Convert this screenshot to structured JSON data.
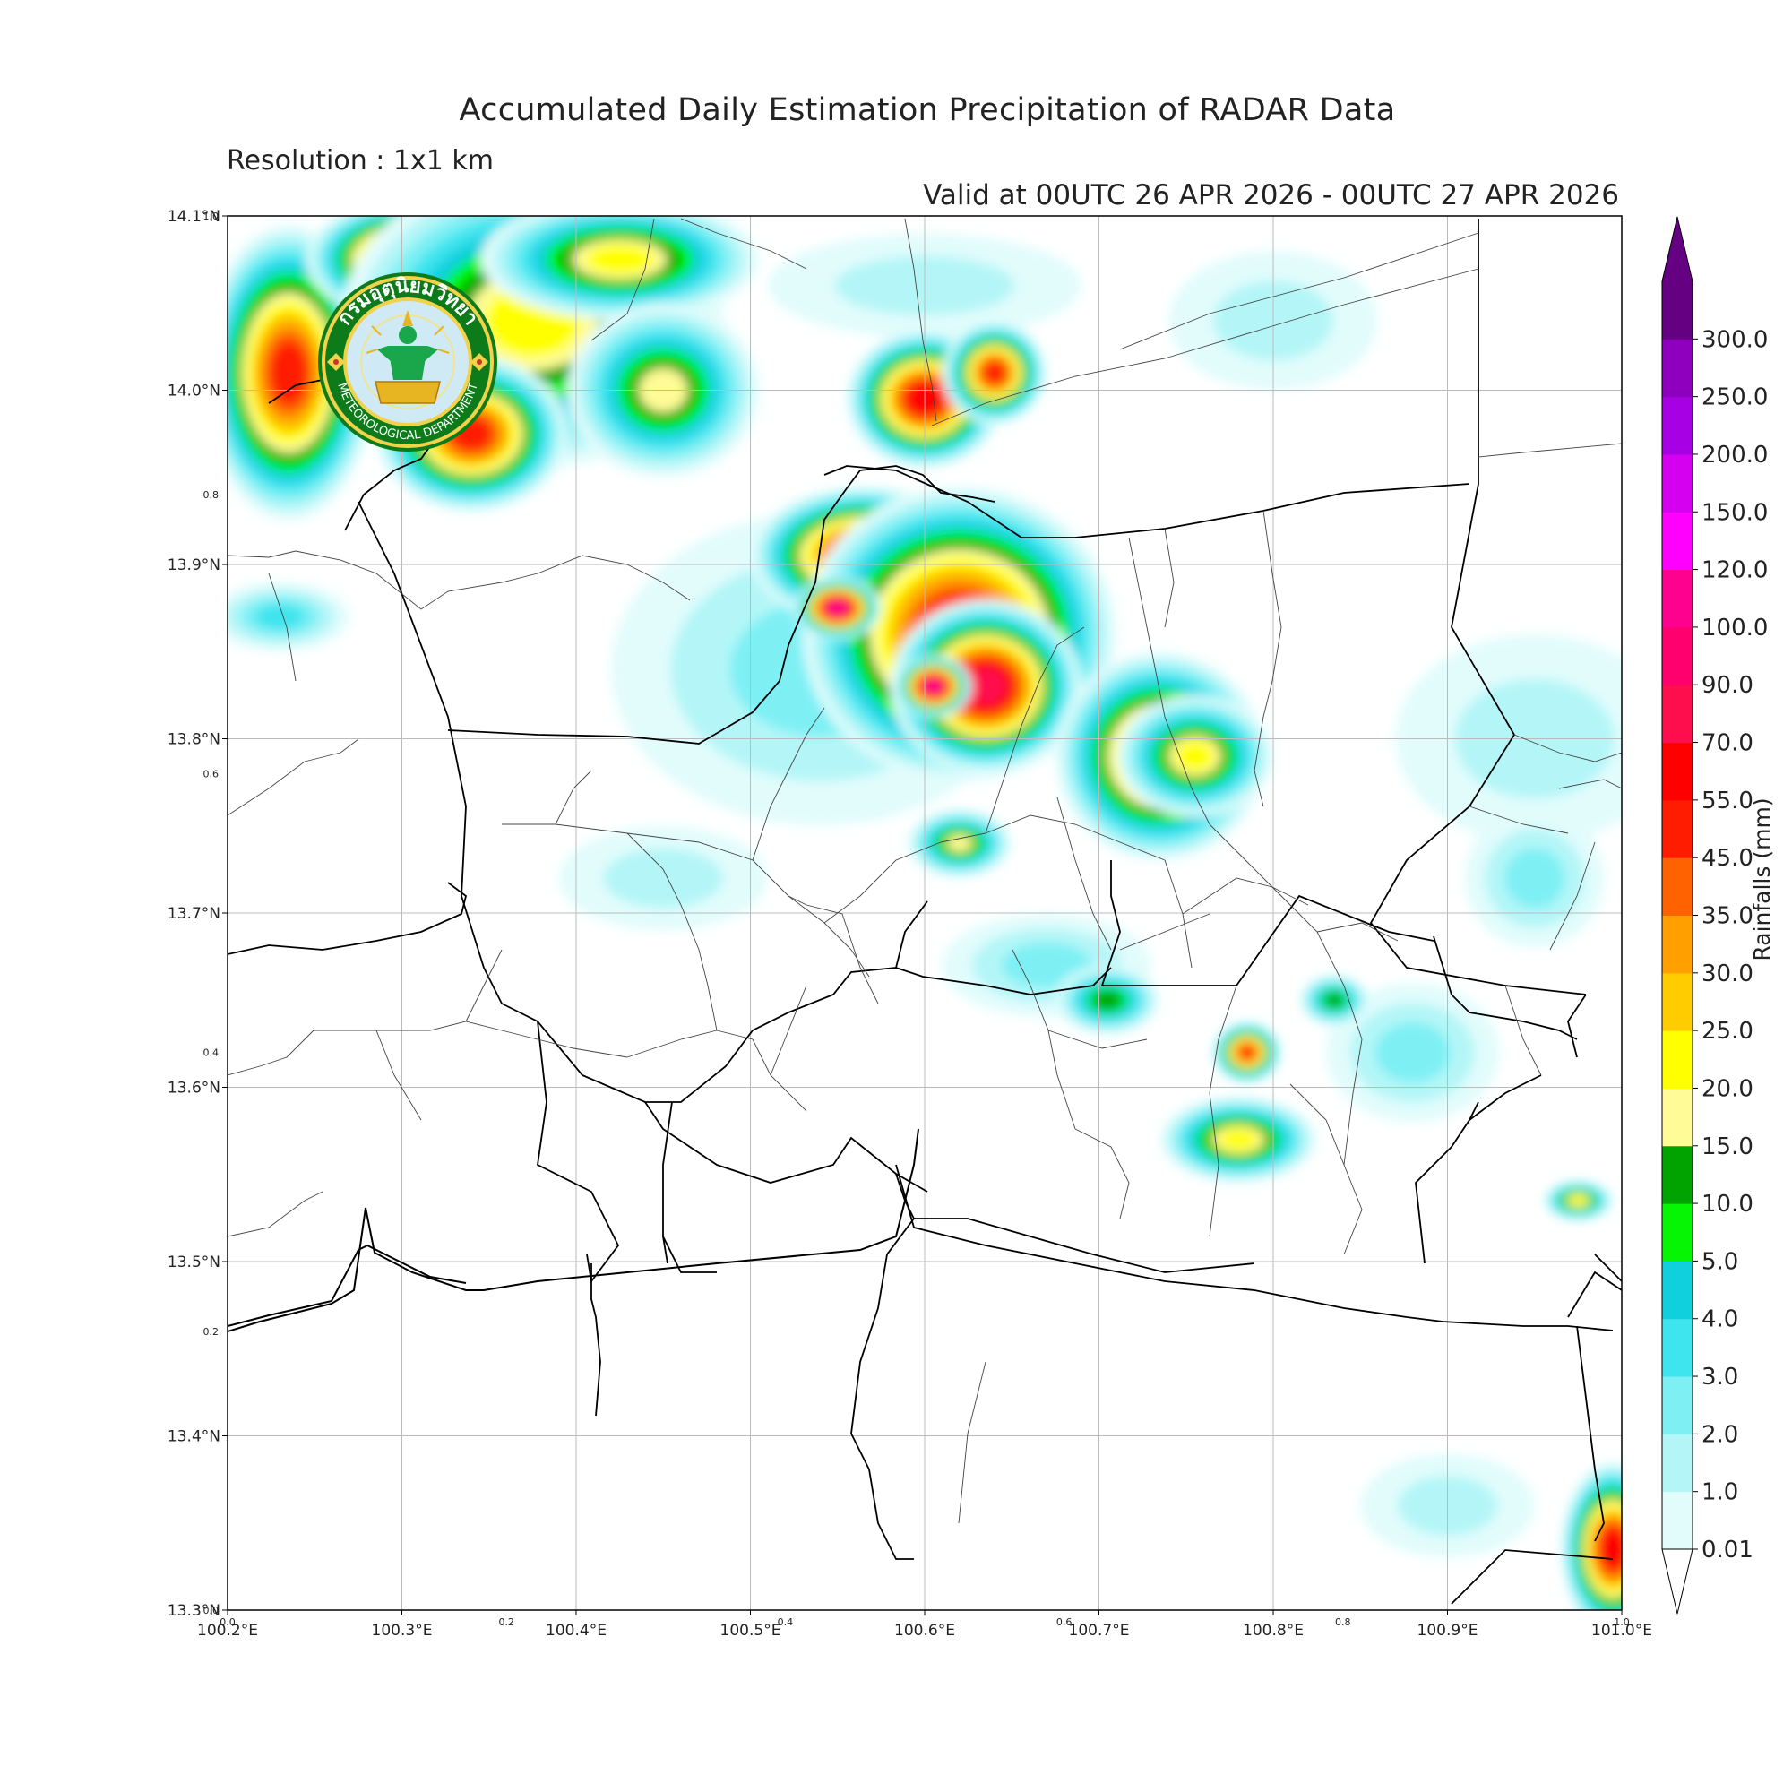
{
  "title": "Accumulated Daily Estimation Precipitation of RADAR Data",
  "subtitle": "Resolution : 1x1 km",
  "valid": "Valid at 00UTC 26 APR 2026 - 00UTC 27 APR 2026",
  "logo": {
    "name": "Thai Meteorological Department seal",
    "text_thai": "กรมอุตุนิยมวิทยา",
    "text_en": "METEOROLOGICAL DEPARTMENT"
  },
  "lon_ticks": [
    "100.2°E",
    "100.3°E",
    "100.4°E",
    "100.5°E",
    "100.6°E",
    "100.7°E",
    "100.8°E",
    "100.9°E",
    "101.0°E"
  ],
  "lat_ticks": [
    "14.1°N",
    "14.0°N",
    "13.9°N",
    "13.8°N",
    "13.7°N",
    "13.6°N",
    "13.5°N",
    "13.4°N",
    "13.3°N"
  ],
  "minor_ticks_x": [
    "0.0",
    "0.2",
    "0.4",
    "0.6",
    "0.8",
    "1.0"
  ],
  "minor_ticks_y": [
    "1.0",
    "0.8",
    "0.6",
    "0.4",
    "0.2",
    "0.0"
  ],
  "colorbar": {
    "title": "Rainfalls (mm)",
    "levels": [
      "0.01",
      "1.0",
      "2.0",
      "3.0",
      "4.0",
      "5.0",
      "10.0",
      "15.0",
      "20.0",
      "25.0",
      "30.0",
      "35.0",
      "45.0",
      "55.0",
      "70.0",
      "90.0",
      "100.0",
      "120.0",
      "150.0",
      "200.0",
      "250.0",
      "300.0"
    ],
    "colors": [
      "#e2fcfc",
      "#b4f6f8",
      "#7ef0f4",
      "#3ee4ee",
      "#10d0de",
      "#05f505",
      "#00a300",
      "#fffb96",
      "#ffff00",
      "#ffcc00",
      "#ff9f00",
      "#ff6200",
      "#ff1c00",
      "#ff0000",
      "#ff0e4e",
      "#ff006e",
      "#ff008f",
      "#ff00ff",
      "#d500ef",
      "#a800e4",
      "#8e00be",
      "#640081"
    ]
  },
  "rain_cells": [
    {
      "lon": 100.235,
      "lat": 14.01,
      "rx": 0.05,
      "ry": 0.085,
      "value": 45.0
    },
    {
      "lon": 100.305,
      "lat": 14.075,
      "rx": 0.06,
      "ry": 0.035,
      "value": 55.0
    },
    {
      "lon": 100.375,
      "lat": 14.04,
      "rx": 0.11,
      "ry": 0.085,
      "value": 20.0
    },
    {
      "lon": 100.34,
      "lat": 13.975,
      "rx": 0.055,
      "ry": 0.045,
      "value": 45.0
    },
    {
      "lon": 100.425,
      "lat": 14.075,
      "rx": 0.08,
      "ry": 0.035,
      "value": 20.0
    },
    {
      "lon": 100.45,
      "lat": 14.0,
      "rx": 0.055,
      "ry": 0.05,
      "value": 15.0
    },
    {
      "lon": 100.6,
      "lat": 13.995,
      "rx": 0.045,
      "ry": 0.04,
      "value": 55.0
    },
    {
      "lon": 100.64,
      "lat": 14.01,
      "rx": 0.03,
      "ry": 0.03,
      "value": 45.0
    },
    {
      "lon": 100.565,
      "lat": 13.905,
      "rx": 0.065,
      "ry": 0.04,
      "value": 55.0
    },
    {
      "lon": 100.62,
      "lat": 13.86,
      "rx": 0.09,
      "ry": 0.085,
      "value": 55.0
    },
    {
      "lon": 100.635,
      "lat": 13.83,
      "rx": 0.055,
      "ry": 0.05,
      "value": 70.0
    },
    {
      "lon": 100.55,
      "lat": 13.875,
      "rx": 0.025,
      "ry": 0.018,
      "value": 100.0
    },
    {
      "lon": 100.605,
      "lat": 13.83,
      "rx": 0.022,
      "ry": 0.018,
      "value": 100.0
    },
    {
      "lon": 100.735,
      "lat": 13.79,
      "rx": 0.06,
      "ry": 0.06,
      "value": 35.0
    },
    {
      "lon": 100.755,
      "lat": 13.79,
      "rx": 0.045,
      "ry": 0.035,
      "value": 20.0
    },
    {
      "lon": 100.62,
      "lat": 13.74,
      "rx": 0.03,
      "ry": 0.02,
      "value": 15.0
    },
    {
      "lon": 100.785,
      "lat": 13.62,
      "rx": 0.02,
      "ry": 0.018,
      "value": 45.0
    },
    {
      "lon": 100.78,
      "lat": 13.57,
      "rx": 0.045,
      "ry": 0.025,
      "value": 20.0
    },
    {
      "lon": 100.995,
      "lat": 13.335,
      "rx": 0.03,
      "ry": 0.05,
      "value": 55.0
    },
    {
      "lon": 100.975,
      "lat": 13.535,
      "rx": 0.02,
      "ry": 0.012,
      "value": 20.0
    },
    {
      "lon": 100.705,
      "lat": 13.65,
      "rx": 0.03,
      "ry": 0.02,
      "value": 10.0
    },
    {
      "lon": 100.835,
      "lat": 13.65,
      "rx": 0.02,
      "ry": 0.015,
      "value": 10.0
    }
  ],
  "light_cells": [
    {
      "lon": 100.54,
      "lat": 13.84,
      "rx": 0.12,
      "ry": 0.09,
      "value": 2.0
    },
    {
      "lon": 100.95,
      "lat": 13.8,
      "rx": 0.08,
      "ry": 0.06,
      "value": 1.0
    },
    {
      "lon": 100.45,
      "lat": 13.72,
      "rx": 0.06,
      "ry": 0.03,
      "value": 1.0
    },
    {
      "lon": 100.88,
      "lat": 13.62,
      "rx": 0.05,
      "ry": 0.04,
      "value": 2.0
    },
    {
      "lon": 100.6,
      "lat": 14.06,
      "rx": 0.09,
      "ry": 0.03,
      "value": 1.0
    },
    {
      "lon": 100.8,
      "lat": 14.04,
      "rx": 0.06,
      "ry": 0.04,
      "value": 1.0
    },
    {
      "lon": 100.23,
      "lat": 13.87,
      "rx": 0.04,
      "ry": 0.02,
      "value": 3.0
    },
    {
      "lon": 100.67,
      "lat": 13.67,
      "rx": 0.06,
      "ry": 0.03,
      "value": 2.0
    },
    {
      "lon": 100.9,
      "lat": 13.36,
      "rx": 0.05,
      "ry": 0.03,
      "value": 1.0
    },
    {
      "lon": 100.95,
      "lat": 13.72,
      "rx": 0.04,
      "ry": 0.04,
      "value": 2.0
    }
  ]
}
